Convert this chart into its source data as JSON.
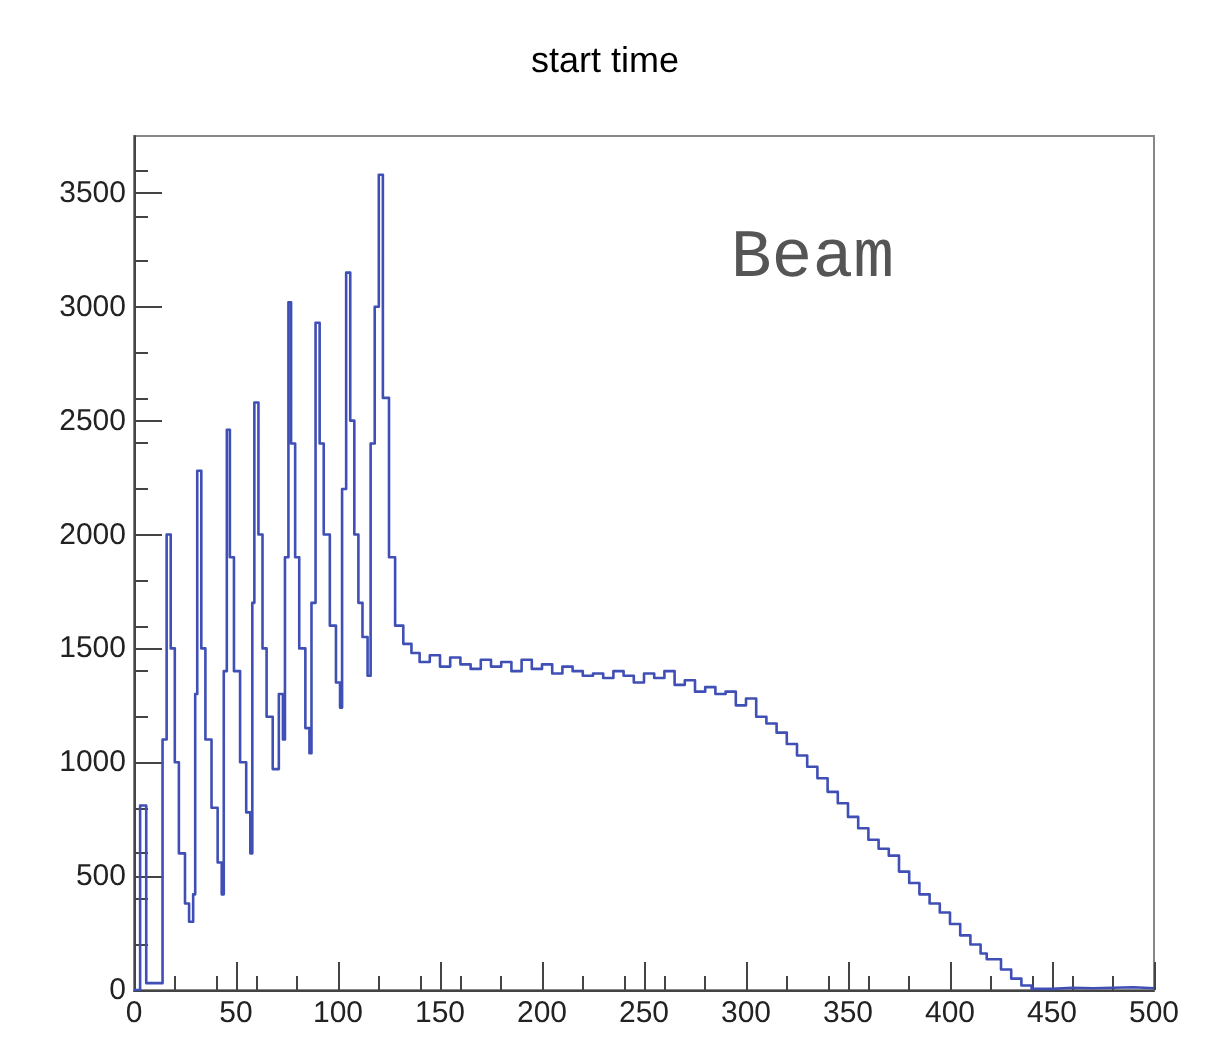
{
  "chart_data": {
    "type": "step",
    "title": "start time",
    "annotations": [
      "Beam"
    ],
    "x": [
      0,
      2,
      3,
      6,
      12,
      14,
      16,
      18,
      20,
      22,
      25,
      27,
      29,
      30,
      31,
      33,
      35,
      38,
      41,
      43,
      44,
      45.5,
      47,
      49,
      52,
      55,
      57,
      58,
      59,
      61,
      63,
      65,
      68,
      71,
      73,
      74,
      75.7,
      77,
      79,
      81,
      84,
      86,
      87,
      89,
      91,
      93,
      96,
      99,
      101,
      102,
      104,
      106,
      108,
      110,
      112,
      114.5,
      116,
      118,
      120,
      122,
      125,
      128,
      132,
      136,
      140,
      145,
      150,
      155,
      160,
      165,
      170,
      175,
      180,
      185,
      190,
      195,
      200,
      205,
      210,
      215,
      220,
      225,
      230,
      235,
      240,
      245,
      250,
      255,
      260,
      265,
      270,
      275,
      280,
      285,
      290,
      295,
      300,
      305,
      310,
      315,
      320,
      325,
      330,
      335,
      340,
      345,
      350,
      355,
      360,
      365,
      370,
      375,
      380,
      385,
      390,
      395,
      400,
      405,
      410,
      415,
      418,
      425,
      430,
      435,
      440,
      450,
      460,
      470,
      480,
      490,
      500
    ],
    "series": [
      {
        "color": "#3f4fb5",
        "values": [
          0,
          0,
          810,
          30,
          30,
          1100,
          2000,
          1500,
          1000,
          600,
          380,
          300,
          420,
          1300,
          2280,
          1500,
          1100,
          800,
          560,
          420,
          1400,
          2460,
          1900,
          1400,
          1000,
          780,
          600,
          1700,
          2580,
          2000,
          1500,
          1200,
          970,
          1300,
          1100,
          1900,
          3020,
          2400,
          1900,
          1500,
          1150,
          1040,
          1700,
          2930,
          2400,
          2000,
          1600,
          1350,
          1240,
          2200,
          3150,
          2500,
          2000,
          1700,
          1550,
          1380,
          2400,
          3000,
          3580,
          2600,
          1900,
          1600,
          1520,
          1480,
          1440,
          1470,
          1420,
          1460,
          1430,
          1410,
          1450,
          1420,
          1440,
          1400,
          1450,
          1410,
          1430,
          1390,
          1420,
          1400,
          1380,
          1390,
          1370,
          1400,
          1380,
          1350,
          1390,
          1370,
          1400,
          1340,
          1360,
          1310,
          1330,
          1300,
          1310,
          1250,
          1280,
          1200,
          1170,
          1130,
          1080,
          1030,
          980,
          930,
          870,
          820,
          760,
          710,
          660,
          620,
          590,
          520,
          470,
          420,
          380,
          340,
          290,
          240,
          200,
          160,
          135,
          90,
          50,
          20,
          5,
          10,
          8,
          10,
          12,
          8,
          5
        ]
      }
    ],
    "xlim": [
      0,
      500
    ],
    "xticks": [
      0,
      50,
      100,
      150,
      200,
      250,
      300,
      350,
      400,
      450,
      500
    ],
    "ylim": [
      0,
      3750
    ],
    "yticks": [
      0,
      500,
      1000,
      1500,
      2000,
      2500,
      3000,
      3500
    ],
    "grid": false
  }
}
